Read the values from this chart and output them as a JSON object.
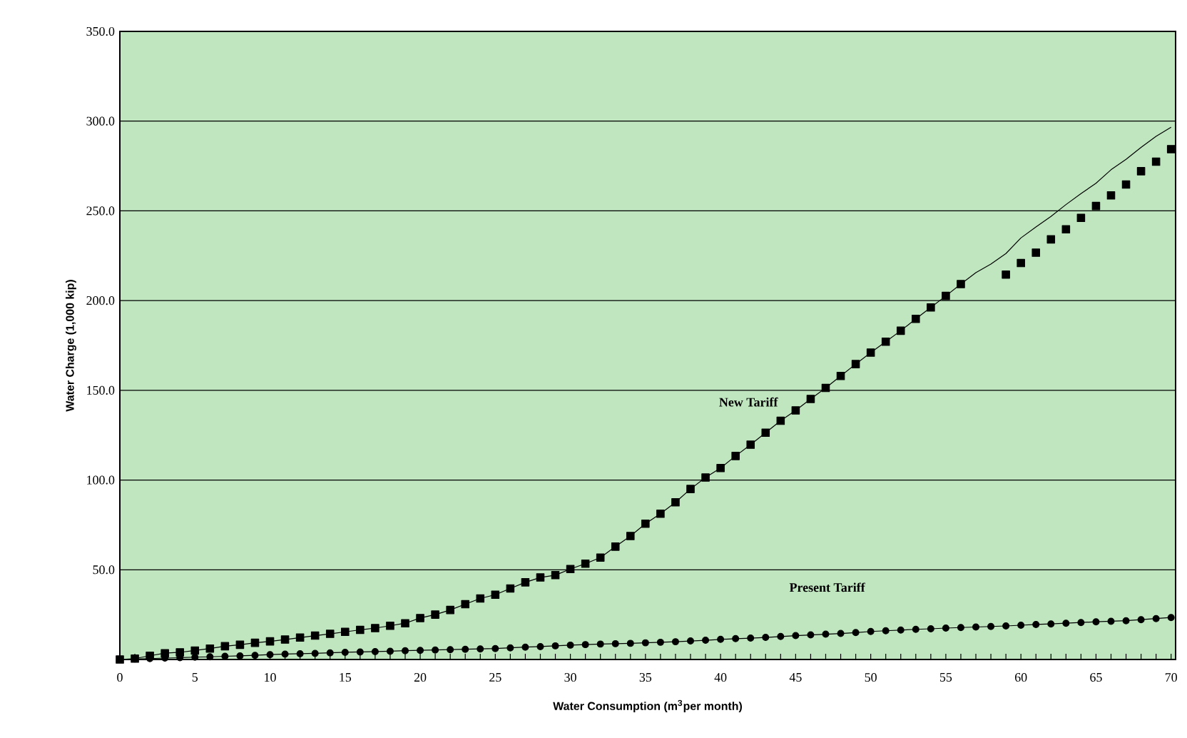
{
  "chart_data": {
    "type": "line",
    "xlabel": "Water Consumption (m$^{3}$per month)",
    "ylabel": "Water Charge (1,000 kip)",
    "xlim": [
      0,
      70.3
    ],
    "ylim": [
      0,
      350
    ],
    "xticks": [
      0,
      5,
      10,
      15,
      20,
      25,
      30,
      35,
      40,
      45,
      50,
      55,
      60,
      65,
      70
    ],
    "yticks": [
      {
        "value": 50,
        "label": "50.0"
      },
      {
        "value": 100,
        "label": "100.0"
      },
      {
        "value": 150,
        "label": "150.0"
      },
      {
        "value": 200,
        "label": "200.0"
      },
      {
        "value": 250,
        "label": "250.0"
      },
      {
        "value": 300,
        "label": "300.0"
      },
      {
        "value": 350,
        "label": "350.0"
      }
    ],
    "grid": "y",
    "x": [
      0,
      1,
      2,
      3,
      4,
      5,
      6,
      7,
      8,
      9,
      10,
      11,
      12,
      13,
      14,
      15,
      16,
      17,
      18,
      19,
      20,
      21,
      22,
      23,
      24,
      25,
      26,
      27,
      28,
      29,
      30,
      31,
      32,
      33,
      34,
      35,
      36,
      37,
      38,
      39,
      40,
      41,
      42,
      43,
      44,
      45,
      46,
      47,
      48,
      49,
      50,
      51,
      52,
      53,
      54,
      55,
      56,
      57,
      58,
      59,
      60,
      61,
      62,
      63,
      64,
      65,
      66,
      67,
      68,
      69,
      70
    ],
    "series": [
      {
        "type": "line",
        "marker": "none",
        "color": "#000000",
        "values": [
          0,
          0.5,
          2.1,
          3.5,
          4.0,
          5.0,
          6.1,
          7.4,
          8.2,
          9.3,
          10.1,
          11.1,
          12.2,
          13.3,
          14.3,
          15.4,
          16.5,
          17.5,
          18.8,
          20.2,
          23.1,
          25.0,
          27.6,
          30.8,
          34.0,
          36.1,
          39.6,
          43.0,
          45.7,
          47.0,
          50.4,
          53.4,
          56.8,
          62.9,
          68.8,
          75.7,
          81.2,
          87.6,
          95.0,
          101.4,
          106.7,
          113.4,
          119.7,
          126.4,
          133.0,
          138.8,
          145.2,
          151.3,
          158.0,
          164.6,
          171.0,
          177.1,
          183.2,
          189.8,
          196.2,
          202.6,
          209.2,
          215.6,
          220.3,
          226.2,
          234.9,
          241.0,
          246.9,
          253.5,
          259.6,
          265.4,
          272.9,
          278.7,
          285.4,
          291.5,
          296.6
        ]
      },
      {
        "type": "scatter",
        "name": "New Tariff",
        "marker": "square",
        "color": "#000000",
        "values": [
          0,
          0.5,
          2.1,
          3.5,
          4.0,
          5.0,
          6.1,
          7.4,
          8.2,
          9.3,
          10.1,
          11.1,
          12.2,
          13.3,
          14.3,
          15.4,
          16.5,
          17.5,
          18.8,
          20.2,
          23.1,
          25.0,
          27.6,
          30.8,
          34.0,
          36.1,
          39.6,
          43.0,
          45.7,
          47.0,
          50.4,
          53.4,
          56.8,
          62.9,
          68.8,
          75.7,
          81.2,
          87.6,
          95.0,
          101.4,
          106.7,
          113.4,
          119.7,
          126.4,
          133.0,
          138.8,
          145.2,
          151.3,
          158.0,
          164.6,
          171.0,
          177.1,
          183.2,
          189.8,
          196.2,
          202.6,
          209.2,
          null,
          null,
          214.5,
          220.9,
          226.7,
          234.1,
          239.7,
          246.1,
          252.7,
          258.6,
          264.7,
          272.1,
          277.4,
          284.4
        ]
      },
      {
        "type": "line",
        "name": "Present Tariff",
        "marker": "circle",
        "color": "#000000",
        "values": [
          0,
          0.3,
          0.5,
          0.8,
          1.0,
          1.3,
          1.5,
          1.8,
          2.0,
          2.3,
          2.7,
          3.0,
          3.2,
          3.4,
          3.7,
          4.0,
          4.2,
          4.4,
          4.6,
          4.9,
          5.1,
          5.3,
          5.5,
          5.7,
          5.9,
          6.1,
          6.5,
          6.9,
          7.2,
          7.6,
          8.0,
          8.3,
          8.6,
          8.8,
          9.0,
          9.3,
          9.6,
          9.9,
          10.3,
          10.7,
          11.2,
          11.6,
          11.9,
          12.3,
          12.8,
          13.3,
          13.7,
          14.1,
          14.5,
          15.0,
          15.6,
          16.0,
          16.4,
          16.8,
          17.1,
          17.5,
          17.8,
          18.1,
          18.4,
          18.7,
          19.1,
          19.5,
          19.8,
          20.2,
          20.6,
          21.0,
          21.3,
          21.6,
          22.2,
          22.8,
          23.4
        ]
      }
    ]
  }
}
